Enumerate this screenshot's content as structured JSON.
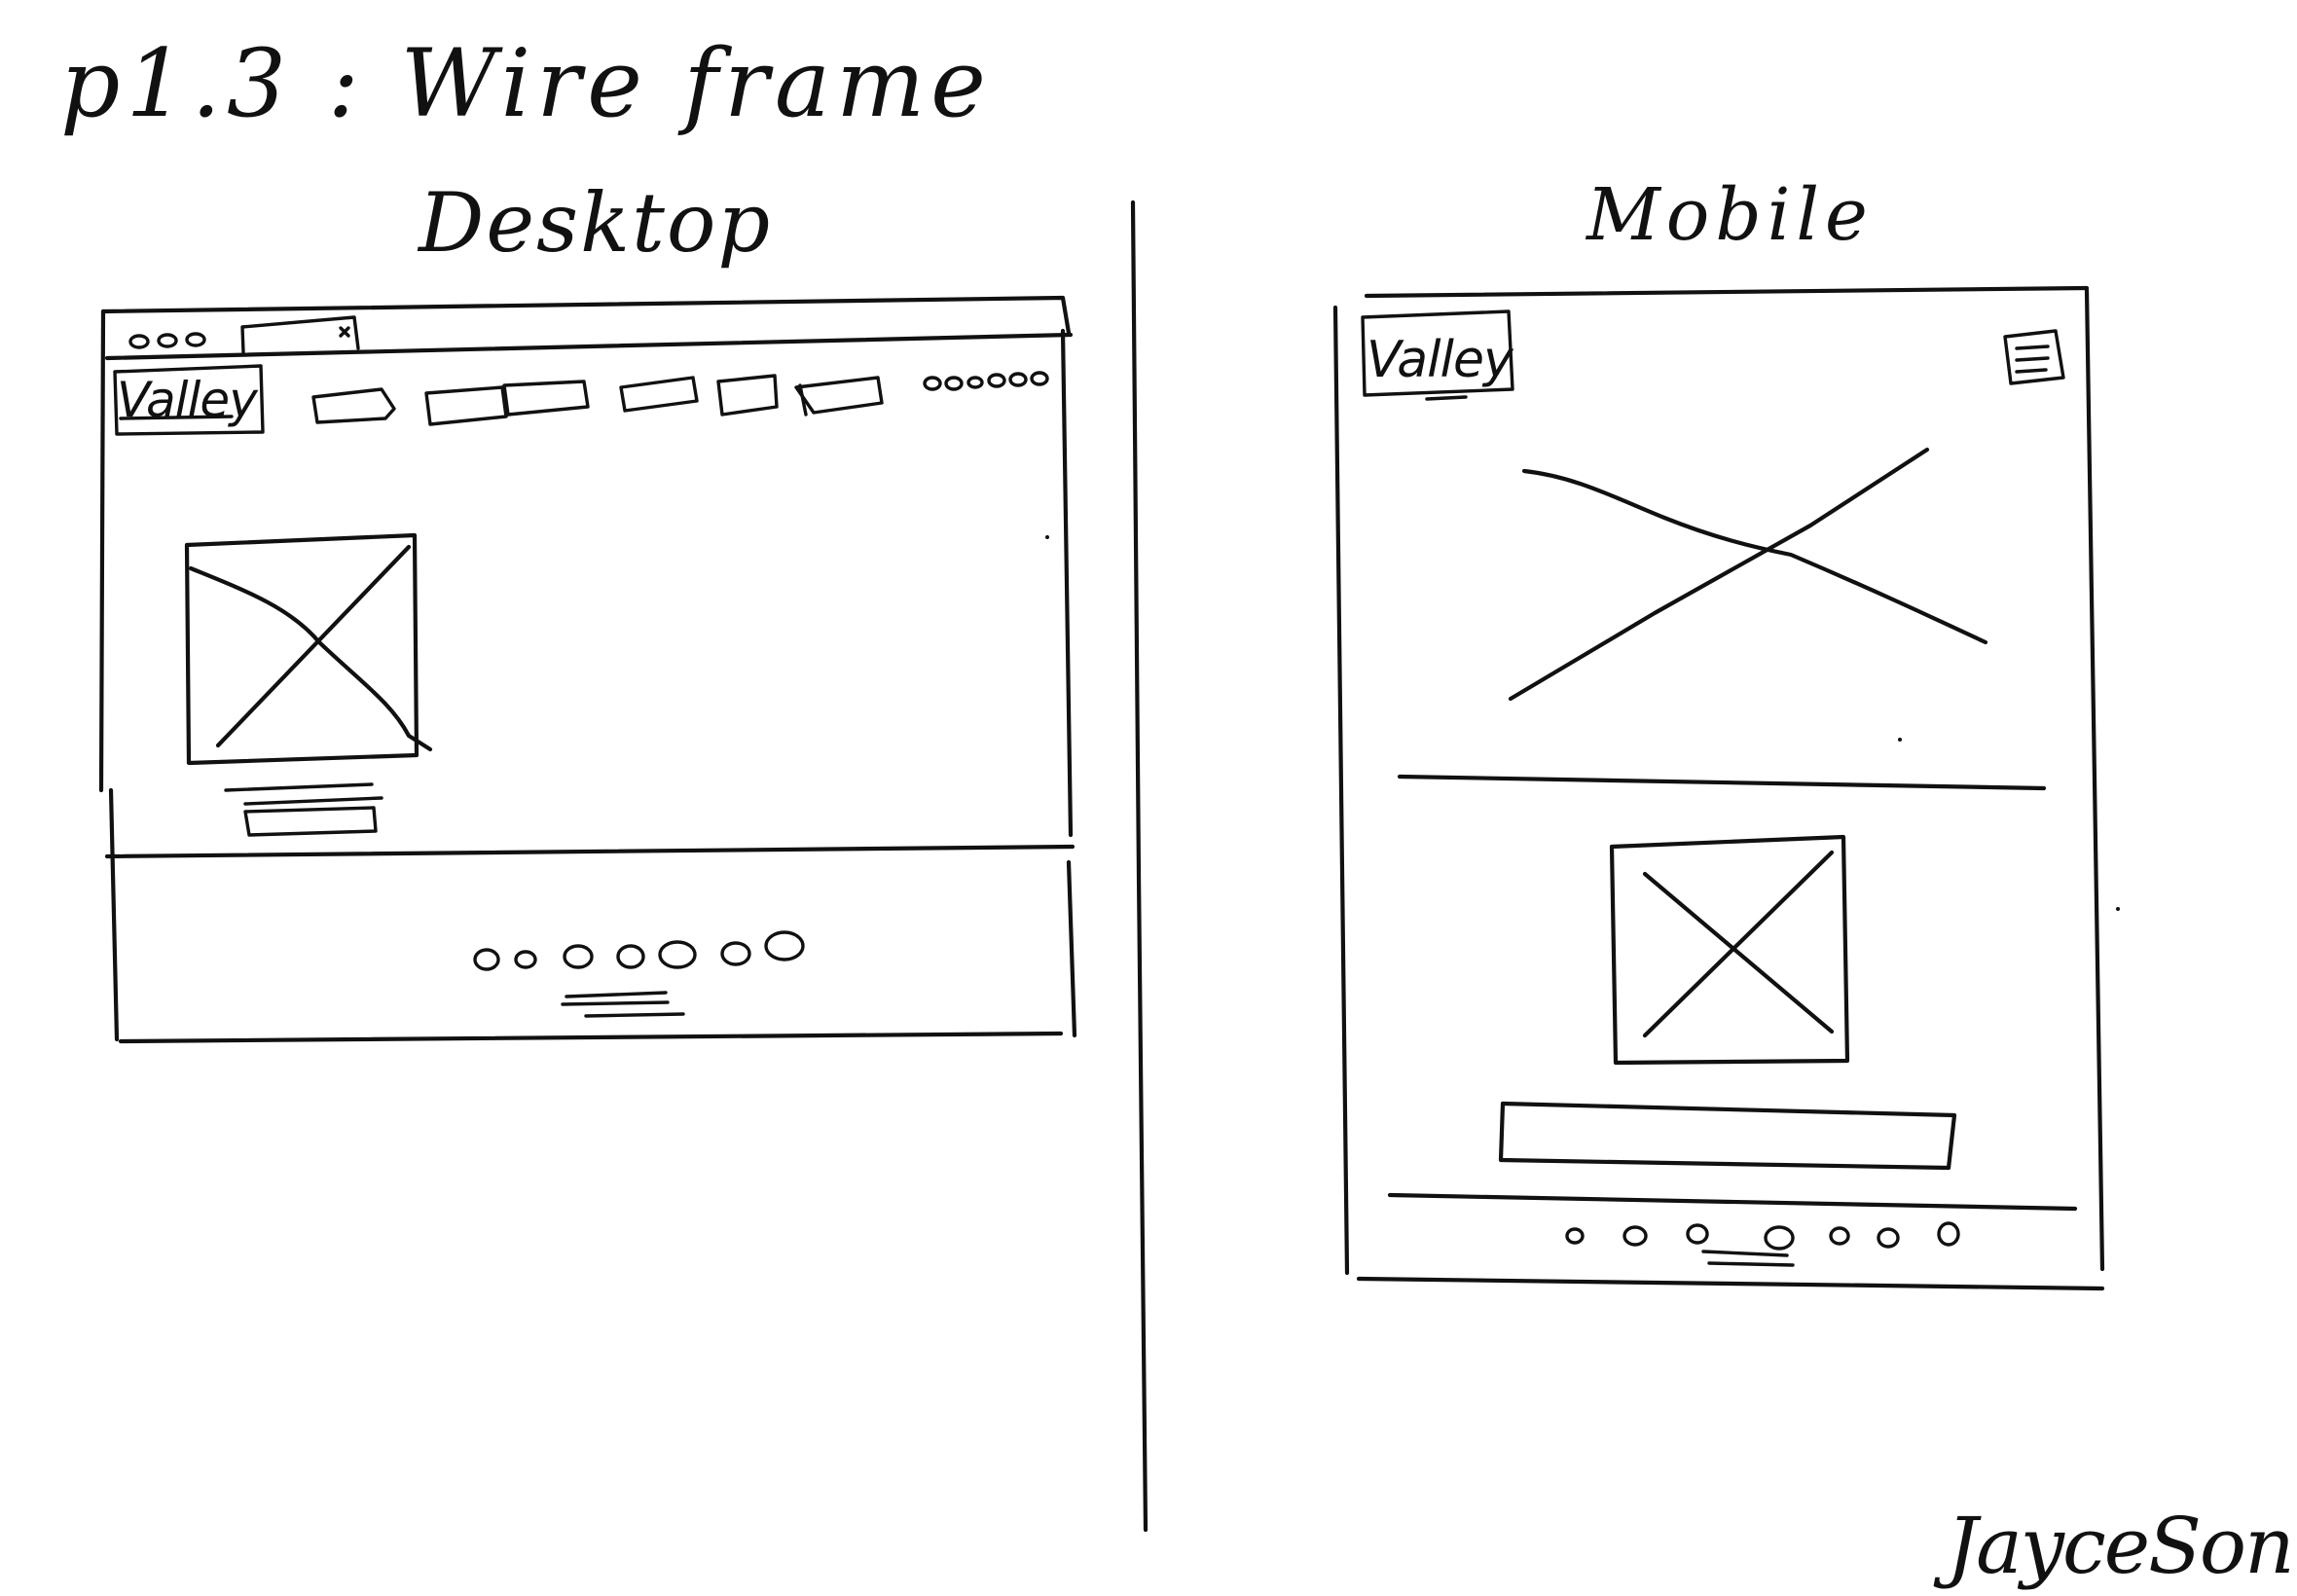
{
  "title": "p1.3 : Wire frame",
  "desktop": {
    "heading": "Desktop",
    "logo": "Valley"
  },
  "mobile": {
    "heading": "Mobile",
    "logo": "Valley"
  },
  "signature": "JayceSon"
}
